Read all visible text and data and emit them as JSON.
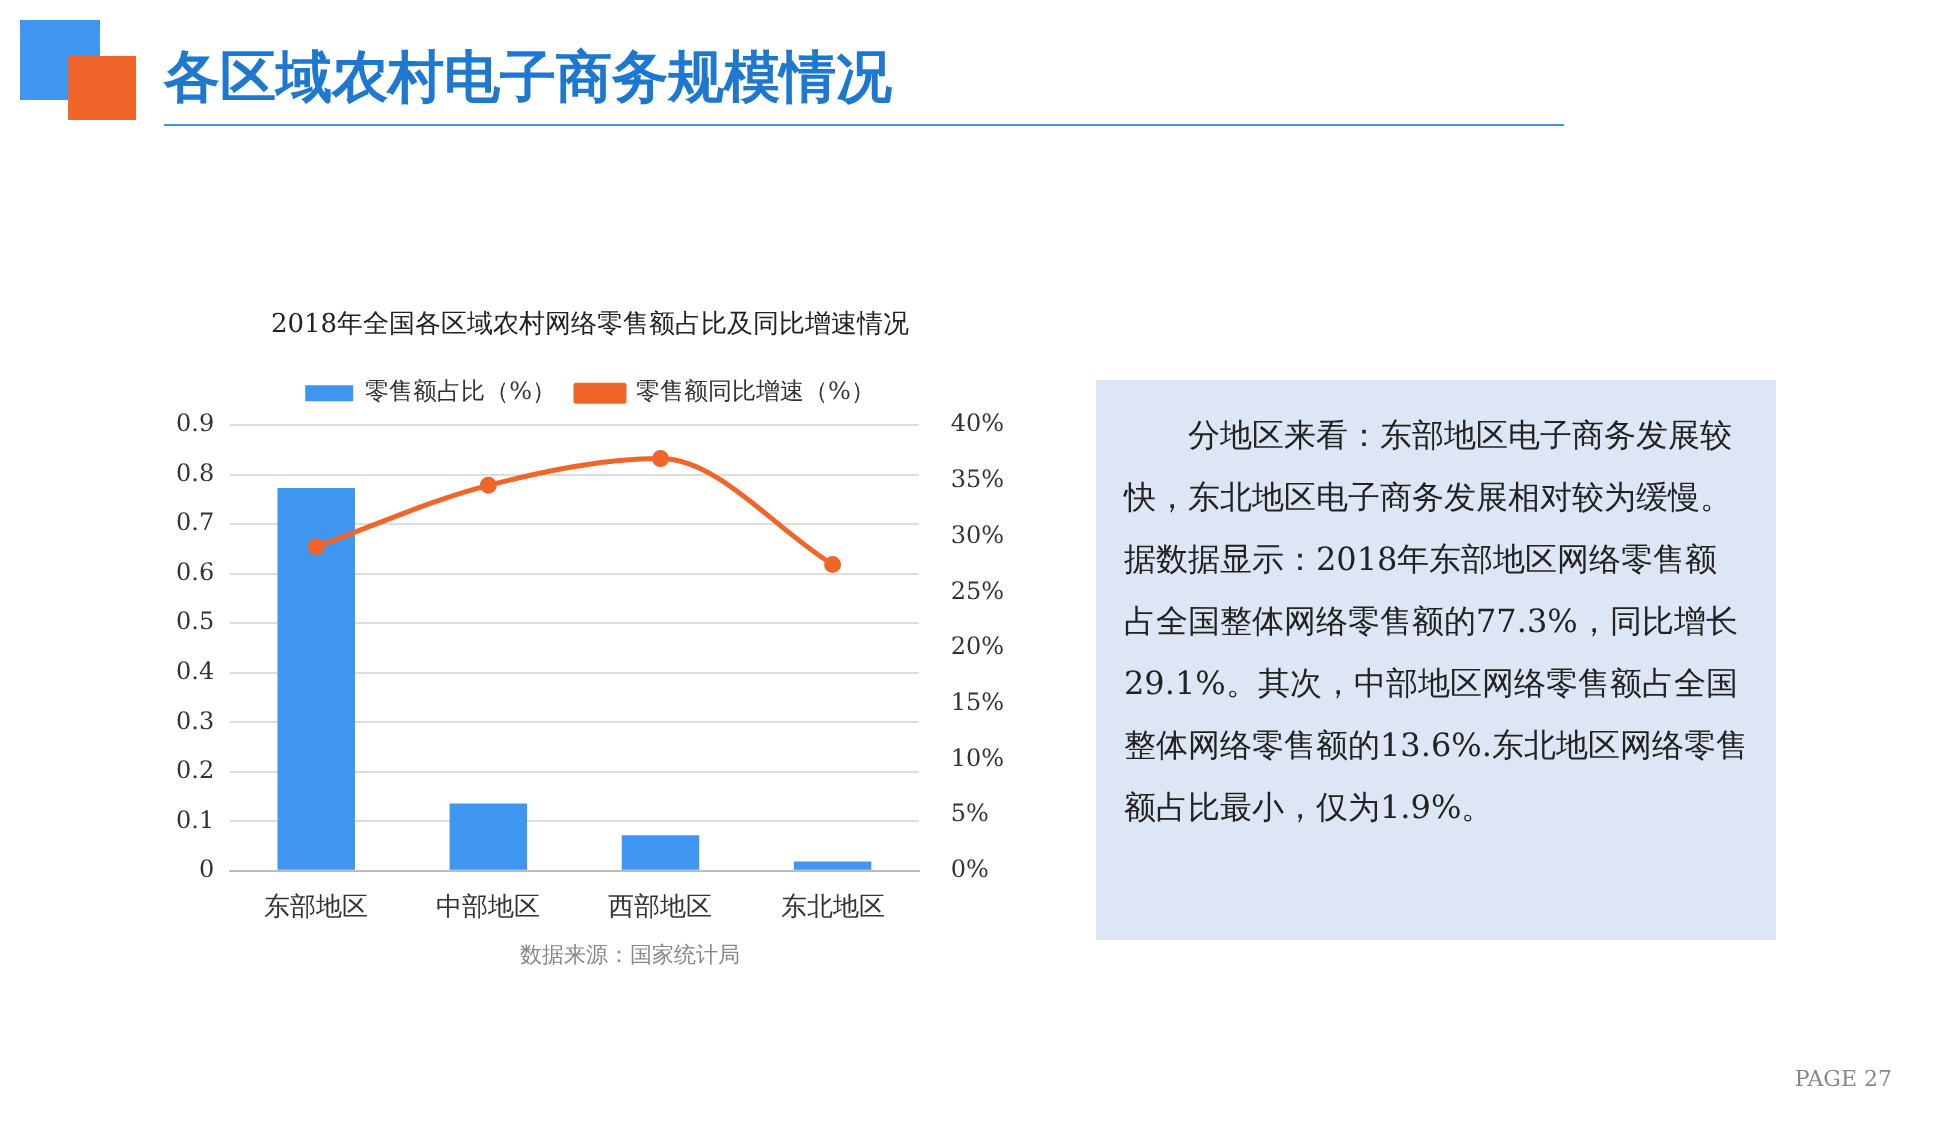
{
  "chart_data": {
    "type": "bar",
    "title": "各区域农村电子商务规模情况",
    "subtitle": "2018年全国各区域农村网络零售额占比及同比增速情况",
    "categories": [
      "东部地区",
      "中部地区",
      "西部地区",
      "东北地区"
    ],
    "series": [
      {
        "name": "零售额占比（%）",
        "color": "#3f96f0",
        "values": [
          0.773,
          0.136,
          0.072,
          0.019
        ]
      },
      {
        "name": "零售额同比增速（%）",
        "color": "#f0662a",
        "type": "line",
        "axis": "y2",
        "values": [
          29.1,
          34.6,
          37.0,
          27.5
        ]
      }
    ],
    "ylim": [
      0,
      0.9
    ],
    "yticks": [
      0,
      0.1,
      0.2,
      0.3,
      0.4,
      0.5,
      0.6,
      0.7,
      0.8,
      0.9
    ],
    "y2lim": [
      0,
      40
    ],
    "y2ticks": [
      {
        "value": 0,
        "label": "0%"
      },
      {
        "value": 5,
        "label": "5%"
      },
      {
        "value": 10,
        "label": "10%"
      },
      {
        "value": 15,
        "label": "15%"
      },
      {
        "value": 20,
        "label": "20%"
      },
      {
        "value": 25,
        "label": "25%"
      },
      {
        "value": 30,
        "label": "30%"
      },
      {
        "value": 35,
        "label": "35%"
      },
      {
        "value": 40,
        "label": "40%"
      }
    ],
    "grid": "y",
    "legend": "top",
    "marker": "circle",
    "annotations": [
      "数据来源：国家统计局",
      "分地区来看：东部地区电子商务发展较快，东北地区电子商务发展相对较为缓慢。据数据显示：2018年东部地区网络零售额占全国整体网络零售额的77.3%，同比增长29.1%。其次，中部地区网络零售额占全国整体网络零售额的13.6%.东北地区网络零售额占比最小，仅为1.9%。",
      "PAGE 27"
    ]
  }
}
